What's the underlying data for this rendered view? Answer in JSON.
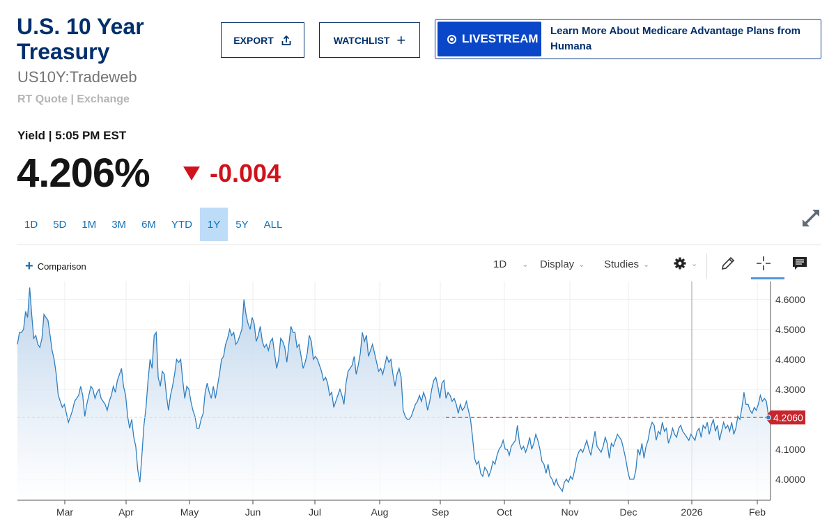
{
  "header": {
    "title": "U.S. 10 Year Treasury",
    "symbol": "US10Y:Tradeweb",
    "quote_source": "RT Quote | Exchange",
    "yield_label": "Yield | 5:05 PM EST",
    "price": "4.206%",
    "change": "-0.004"
  },
  "actions": {
    "export_label": "EXPORT",
    "watchlist_label": "WATCHLIST"
  },
  "promo": {
    "live_label": "LIVESTREAM",
    "text": "Learn More About Medicare Advantage Plans from Humana"
  },
  "ranges": [
    "1D",
    "5D",
    "1M",
    "3M",
    "6M",
    "YTD",
    "1Y",
    "5Y",
    "ALL"
  ],
  "active_range": "1Y",
  "toolbar": {
    "comparison_label": "Comparison",
    "interval_label": "1D",
    "display_label": "Display",
    "studies_label": "Studies",
    "icons": [
      "gear-icon",
      "pencil-icon",
      "crosshair-icon",
      "comment-icon",
      "expand-icon"
    ]
  },
  "colors": {
    "brand": "#002f6c",
    "negative": "#d0121b",
    "line": "#2f7fc0",
    "active_range_bg": "#bcdcf7",
    "price_marker": "#c8252c"
  },
  "chart_data": {
    "type": "area",
    "current_value": 4.206,
    "current_value_label": "4.2060",
    "ylim": [
      3.93,
      4.66
    ],
    "y_ticks": [
      "4.6000",
      "4.5000",
      "4.4000",
      "4.3000",
      "4.1000",
      "4.0000"
    ],
    "x_ticks": [
      "Mar",
      "Apr",
      "May",
      "Jun",
      "Jul",
      "Aug",
      "Sep",
      "Oct",
      "Nov",
      "Dec",
      "2026",
      "Feb"
    ],
    "grid": true,
    "series": [
      {
        "values": [
          4.45,
          4.49,
          4.49,
          4.5,
          4.56,
          4.54,
          4.64,
          4.55,
          4.47,
          4.48,
          4.45,
          4.44,
          4.47,
          4.55,
          4.54,
          4.53,
          4.48,
          4.43,
          4.4,
          4.35,
          4.28,
          4.26,
          4.24,
          4.25,
          4.22,
          4.19,
          4.21,
          4.23,
          4.26,
          4.27,
          4.28,
          4.31,
          4.28,
          4.21,
          4.25,
          4.28,
          4.31,
          4.3,
          4.27,
          4.29,
          4.3,
          4.27,
          4.26,
          4.25,
          4.23,
          4.26,
          4.28,
          4.31,
          4.29,
          4.33,
          4.35,
          4.37,
          4.31,
          4.28,
          4.21,
          4.17,
          4.2,
          4.14,
          4.11,
          4.03,
          3.99,
          4.08,
          4.18,
          4.24,
          4.33,
          4.4,
          4.37,
          4.48,
          4.49,
          4.34,
          4.31,
          4.36,
          4.35,
          4.28,
          4.23,
          4.28,
          4.31,
          4.35,
          4.4,
          4.39,
          4.4,
          4.33,
          4.27,
          4.31,
          4.3,
          4.26,
          4.23,
          4.21,
          4.17,
          4.17,
          4.2,
          4.22,
          4.29,
          4.32,
          4.29,
          4.27,
          4.31,
          4.27,
          4.31,
          4.35,
          4.4,
          4.41,
          4.45,
          4.47,
          4.5,
          4.48,
          4.49,
          4.45,
          4.46,
          4.48,
          4.5,
          4.6,
          4.55,
          4.52,
          4.5,
          4.54,
          4.52,
          4.46,
          4.48,
          4.51,
          4.46,
          4.44,
          4.45,
          4.43,
          4.46,
          4.47,
          4.42,
          4.37,
          4.4,
          4.47,
          4.46,
          4.44,
          4.39,
          4.45,
          4.51,
          4.49,
          4.49,
          4.44,
          4.45,
          4.41,
          4.37,
          4.39,
          4.42,
          4.48,
          4.46,
          4.4,
          4.41,
          4.4,
          4.38,
          4.36,
          4.33,
          4.34,
          4.32,
          4.28,
          4.29,
          4.24,
          4.26,
          4.28,
          4.3,
          4.28,
          4.25,
          4.32,
          4.36,
          4.37,
          4.38,
          4.41,
          4.35,
          4.38,
          4.42,
          4.49,
          4.46,
          4.48,
          4.41,
          4.43,
          4.45,
          4.42,
          4.39,
          4.36,
          4.37,
          4.35,
          4.38,
          4.41,
          4.39,
          4.4,
          4.35,
          4.31,
          4.35,
          4.37,
          4.34,
          4.23,
          4.21,
          4.2,
          4.2,
          4.21,
          4.23,
          4.25,
          4.26,
          4.28,
          4.26,
          4.29,
          4.27,
          4.23,
          4.26,
          4.3,
          4.33,
          4.34,
          4.31,
          4.27,
          4.32,
          4.33,
          4.27,
          4.29,
          4.28,
          4.26,
          4.27,
          4.25,
          4.22,
          4.25,
          4.23,
          4.24,
          4.26,
          4.23,
          4.2,
          4.14,
          4.07,
          4.05,
          4.06,
          4.02,
          4.01,
          4.04,
          4.03,
          4.01,
          4.03,
          4.06,
          4.05,
          4.08,
          4.1,
          4.11,
          4.13,
          4.1,
          4.1,
          4.08,
          4.11,
          4.12,
          4.13,
          4.18,
          4.12,
          4.1,
          4.11,
          4.09,
          4.11,
          4.14,
          4.1,
          4.12,
          4.15,
          4.13,
          4.1,
          4.06,
          4.05,
          4.02,
          4.05,
          4.01,
          4.0,
          3.98,
          4.0,
          3.98,
          3.97,
          3.96,
          3.99,
          4.0,
          3.99,
          4.01,
          4.0,
          4.03,
          4.07,
          4.09,
          4.1,
          4.09,
          4.11,
          4.13,
          4.1,
          4.08,
          4.12,
          4.16,
          4.11,
          4.1,
          4.09,
          4.11,
          4.14,
          4.12,
          4.07,
          4.12,
          4.11,
          4.13,
          4.15,
          4.14,
          4.13,
          4.1,
          4.07,
          4.03,
          4.0,
          4.0,
          4.0,
          4.03,
          4.1,
          4.08,
          4.12,
          4.07,
          4.11,
          4.13,
          4.17,
          4.19,
          4.18,
          4.13,
          4.16,
          4.15,
          4.19,
          4.16,
          4.17,
          4.12,
          4.14,
          4.17,
          4.15,
          4.14,
          4.17,
          4.18,
          4.16,
          4.15,
          4.14,
          4.13,
          4.15,
          4.14,
          4.13,
          4.16,
          4.17,
          4.14,
          4.18,
          4.17,
          4.19,
          4.15,
          4.18,
          4.2,
          4.16,
          4.18,
          4.13,
          4.16,
          4.19,
          4.17,
          4.18,
          4.16,
          4.19,
          4.15,
          4.17,
          4.21,
          4.2,
          4.24,
          4.29,
          4.25,
          4.25,
          4.23,
          4.22,
          4.24,
          4.23,
          4.25,
          4.28,
          4.26,
          4.27,
          4.26,
          4.21,
          4.206
        ]
      }
    ]
  }
}
